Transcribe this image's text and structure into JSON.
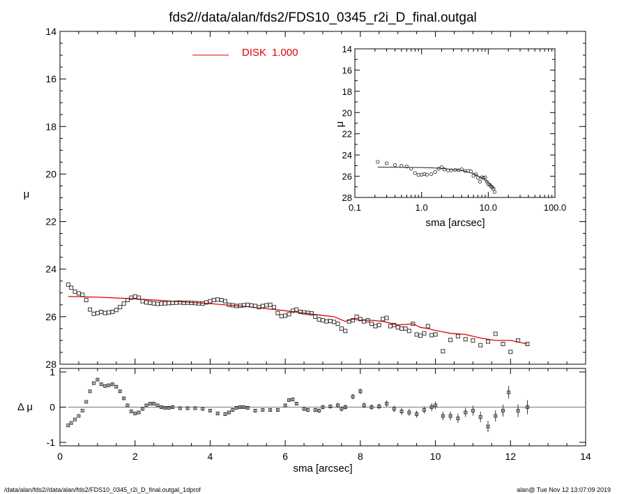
{
  "title": "fds2//data/alan/fds2/FDS10_0345_r2i_D_final.outgal",
  "footer_left": "/data/alan/fds2//data/alan/fds2/FDS10_0345_r2i_D_final.outgal_1dprof",
  "footer_right": "alan@  Tue Nov 12 13:07:09 2019",
  "colors": {
    "model": "#e00000",
    "data": "#000000"
  },
  "chart_data": [
    {
      "type": "scatter",
      "panel": "main",
      "xlabel": "sma [arcsec]",
      "ylabel": "μ",
      "xlim": [
        0,
        14
      ],
      "ylim": [
        28,
        14
      ],
      "y_inverted": true,
      "xticks": [
        "0",
        "2",
        "4",
        "6",
        "8",
        "10",
        "12",
        "14"
      ],
      "yticks": [
        "14",
        "16",
        "18",
        "20",
        "22",
        "24",
        "26",
        "28"
      ],
      "legend": {
        "label": "DISK",
        "value": "1.000",
        "placement": "top-center"
      },
      "series": [
        {
          "name": "data",
          "marker": "square",
          "x": [
            0.22,
            0.3,
            0.4,
            0.5,
            0.6,
            0.7,
            0.8,
            0.9,
            1.0,
            1.1,
            1.2,
            1.3,
            1.4,
            1.5,
            1.6,
            1.7,
            1.8,
            1.9,
            2.0,
            2.1,
            2.2,
            2.3,
            2.4,
            2.5,
            2.6,
            2.7,
            2.8,
            2.9,
            3.0,
            3.1,
            3.2,
            3.3,
            3.4,
            3.5,
            3.6,
            3.7,
            3.8,
            3.9,
            4.0,
            4.1,
            4.2,
            4.3,
            4.4,
            4.5,
            4.6,
            4.7,
            4.8,
            4.9,
            5.0,
            5.1,
            5.2,
            5.3,
            5.4,
            5.5,
            5.6,
            5.7,
            5.8,
            5.9,
            6.0,
            6.1,
            6.2,
            6.3,
            6.4,
            6.5,
            6.6,
            6.7,
            6.8,
            6.9,
            7.0,
            7.1,
            7.2,
            7.3,
            7.4,
            7.5,
            7.6,
            7.7,
            7.8,
            7.9,
            8.0,
            8.1,
            8.2,
            8.3,
            8.4,
            8.5,
            8.6,
            8.7,
            8.8,
            8.9,
            9.0,
            9.1,
            9.2,
            9.3,
            9.4,
            9.5,
            9.6,
            9.7,
            9.8,
            9.9,
            10.0,
            10.2,
            10.4,
            10.6,
            10.8,
            11.0,
            11.2,
            11.4,
            11.6,
            11.8,
            12.0,
            12.2,
            12.45
          ],
          "y": [
            24.65,
            24.78,
            24.95,
            25.02,
            25.08,
            25.3,
            25.7,
            25.88,
            25.85,
            25.8,
            25.85,
            25.82,
            25.8,
            25.72,
            25.6,
            25.45,
            25.3,
            25.2,
            25.15,
            25.2,
            25.35,
            25.4,
            25.42,
            25.44,
            25.46,
            25.45,
            25.44,
            25.43,
            25.42,
            25.41,
            25.4,
            25.42,
            25.41,
            25.42,
            25.43,
            25.44,
            25.45,
            25.4,
            25.35,
            25.3,
            25.28,
            25.3,
            25.35,
            25.5,
            25.52,
            25.55,
            25.54,
            25.52,
            25.5,
            25.53,
            25.55,
            25.6,
            25.55,
            25.52,
            25.5,
            25.6,
            25.85,
            25.98,
            25.96,
            25.9,
            25.75,
            25.7,
            25.8,
            25.82,
            25.84,
            25.86,
            26.0,
            26.12,
            26.15,
            26.2,
            26.18,
            26.22,
            26.3,
            26.5,
            26.6,
            26.2,
            26.15,
            26.0,
            26.1,
            26.2,
            26.15,
            26.3,
            26.4,
            26.35,
            26.1,
            26.05,
            26.4,
            26.35,
            26.45,
            26.5,
            26.5,
            26.6,
            26.3,
            26.75,
            26.8,
            26.7,
            26.4,
            26.78,
            26.75,
            27.45,
            26.98,
            26.82,
            26.95,
            27.0,
            27.2,
            27.05,
            26.72,
            27.15,
            27.48,
            27.0,
            27.15
          ]
        },
        {
          "name": "DISK",
          "style": "line",
          "x": [
            0.22,
            1.0,
            2.0,
            3.0,
            4.0,
            5.0,
            6.0,
            6.5,
            7.0,
            7.3,
            7.6,
            7.8,
            8.0,
            8.3,
            8.6,
            9.0,
            9.4,
            9.6,
            9.8,
            10.0,
            10.4,
            10.8,
            11.2,
            11.6,
            12.0,
            12.45
          ],
          "y": [
            25.15,
            25.18,
            25.25,
            25.35,
            25.45,
            25.58,
            25.75,
            25.85,
            25.95,
            26.0,
            26.2,
            26.1,
            26.15,
            26.15,
            26.2,
            26.35,
            26.3,
            26.45,
            26.5,
            26.58,
            26.7,
            26.75,
            26.9,
            27.0,
            27.0,
            27.15
          ]
        }
      ]
    },
    {
      "type": "scatter",
      "panel": "residual",
      "xlabel": "sma [arcsec]",
      "ylabel": "Δ μ",
      "xlim": [
        0,
        14
      ],
      "ylim": [
        -1.1,
        1.1
      ],
      "xticks": [
        "0",
        "2",
        "4",
        "6",
        "8",
        "10",
        "12",
        "14"
      ],
      "yticks": [
        "-1",
        "0",
        "1"
      ],
      "reference_line": 0,
      "series": [
        {
          "name": "residual",
          "marker": "square",
          "x": [
            0.22,
            0.3,
            0.4,
            0.5,
            0.6,
            0.7,
            0.8,
            0.9,
            1.0,
            1.1,
            1.2,
            1.3,
            1.4,
            1.5,
            1.6,
            1.7,
            1.8,
            1.9,
            2.0,
            2.1,
            2.2,
            2.3,
            2.4,
            2.5,
            2.6,
            2.7,
            2.8,
            2.9,
            3.0,
            3.2,
            3.4,
            3.6,
            3.8,
            4.0,
            4.2,
            4.4,
            4.5,
            4.6,
            4.7,
            4.8,
            4.9,
            5.0,
            5.2,
            5.4,
            5.6,
            5.8,
            6.0,
            6.1,
            6.2,
            6.3,
            6.5,
            6.6,
            6.8,
            6.9,
            7.0,
            7.2,
            7.4,
            7.5,
            7.6,
            7.8,
            8.0,
            8.1,
            8.3,
            8.5,
            8.7,
            8.9,
            9.1,
            9.3,
            9.5,
            9.7,
            9.9,
            10.0,
            10.2,
            10.4,
            10.6,
            10.8,
            11.0,
            11.2,
            11.4,
            11.6,
            11.8,
            11.95,
            12.2,
            12.45
          ],
          "y": [
            -0.52,
            -0.45,
            -0.35,
            -0.25,
            -0.1,
            0.15,
            0.45,
            0.68,
            0.78,
            0.65,
            0.6,
            0.62,
            0.65,
            0.58,
            0.45,
            0.25,
            0.05,
            -0.12,
            -0.18,
            -0.15,
            -0.05,
            0.05,
            0.1,
            0.1,
            0.05,
            0.0,
            -0.02,
            -0.02,
            0.0,
            -0.03,
            -0.03,
            -0.03,
            -0.05,
            -0.1,
            -0.18,
            -0.2,
            -0.15,
            -0.08,
            -0.02,
            0.0,
            0.0,
            -0.02,
            -0.1,
            -0.08,
            -0.08,
            -0.08,
            0.05,
            0.2,
            0.22,
            0.1,
            -0.05,
            -0.08,
            -0.08,
            -0.1,
            0.0,
            0.02,
            0.05,
            -0.05,
            0.0,
            0.3,
            0.45,
            0.05,
            0.0,
            0.02,
            0.1,
            -0.05,
            -0.12,
            -0.15,
            -0.2,
            -0.08,
            0.0,
            0.05,
            -0.25,
            -0.25,
            -0.32,
            -0.15,
            -0.1,
            -0.28,
            -0.55,
            -0.25,
            -0.1,
            0.42,
            -0.1,
            0.0
          ],
          "err": [
            0.02,
            0.02,
            0.02,
            0.02,
            0.02,
            0.02,
            0.02,
            0.02,
            0.03,
            0.03,
            0.03,
            0.03,
            0.03,
            0.03,
            0.03,
            0.03,
            0.03,
            0.03,
            0.03,
            0.03,
            0.03,
            0.03,
            0.03,
            0.03,
            0.03,
            0.03,
            0.03,
            0.03,
            0.03,
            0.03,
            0.03,
            0.03,
            0.03,
            0.04,
            0.04,
            0.04,
            0.04,
            0.04,
            0.04,
            0.04,
            0.04,
            0.04,
            0.05,
            0.05,
            0.05,
            0.05,
            0.05,
            0.05,
            0.05,
            0.05,
            0.06,
            0.06,
            0.06,
            0.06,
            0.06,
            0.06,
            0.07,
            0.07,
            0.07,
            0.08,
            0.08,
            0.08,
            0.08,
            0.08,
            0.09,
            0.09,
            0.1,
            0.1,
            0.1,
            0.1,
            0.11,
            0.11,
            0.12,
            0.12,
            0.13,
            0.13,
            0.14,
            0.15,
            0.16,
            0.16,
            0.17,
            0.18,
            0.18,
            0.2
          ]
        }
      ]
    },
    {
      "type": "scatter",
      "panel": "inset",
      "xlabel": "sma [arcsec]",
      "ylabel": "μ",
      "x_scale": "log",
      "xlim": [
        0.1,
        100.0
      ],
      "ylim": [
        28,
        14
      ],
      "y_inverted": true,
      "xticks": [
        "0.1",
        "1.0",
        "10.0",
        "100.0"
      ],
      "yticks": [
        "14",
        "16",
        "18",
        "20",
        "22",
        "24",
        "26",
        "28"
      ],
      "series": [
        {
          "name": "data",
          "marker": "circle",
          "x": [
            0.22,
            0.3,
            0.4,
            0.5,
            0.6,
            0.7,
            0.8,
            0.9,
            1.0,
            1.1,
            1.2,
            1.4,
            1.6,
            1.8,
            2.0,
            2.2,
            2.5,
            2.8,
            3.2,
            3.6,
            4.0,
            4.5,
            5.0,
            5.5,
            6.0,
            6.5,
            7.0,
            7.5,
            8.0,
            8.5,
            9.0,
            9.5,
            10.0,
            10.5,
            11.0,
            11.5,
            12.0,
            12.45
          ],
          "y": [
            24.65,
            24.78,
            24.95,
            25.02,
            25.08,
            25.3,
            25.7,
            25.88,
            25.85,
            25.8,
            25.85,
            25.8,
            25.6,
            25.3,
            25.15,
            25.35,
            25.44,
            25.44,
            25.4,
            25.43,
            25.35,
            25.5,
            25.5,
            25.55,
            25.96,
            25.82,
            26.15,
            26.5,
            26.1,
            26.15,
            26.1,
            26.5,
            26.75,
            26.8,
            26.95,
            27.05,
            27.2,
            27.48
          ]
        },
        {
          "name": "DISK",
          "style": "line",
          "x": [
            0.22,
            1.0,
            2.0,
            4.0,
            6.0,
            8.0,
            10.0,
            12.45
          ],
          "y": [
            25.15,
            25.18,
            25.25,
            25.45,
            25.75,
            26.15,
            26.58,
            27.15
          ]
        }
      ]
    }
  ]
}
